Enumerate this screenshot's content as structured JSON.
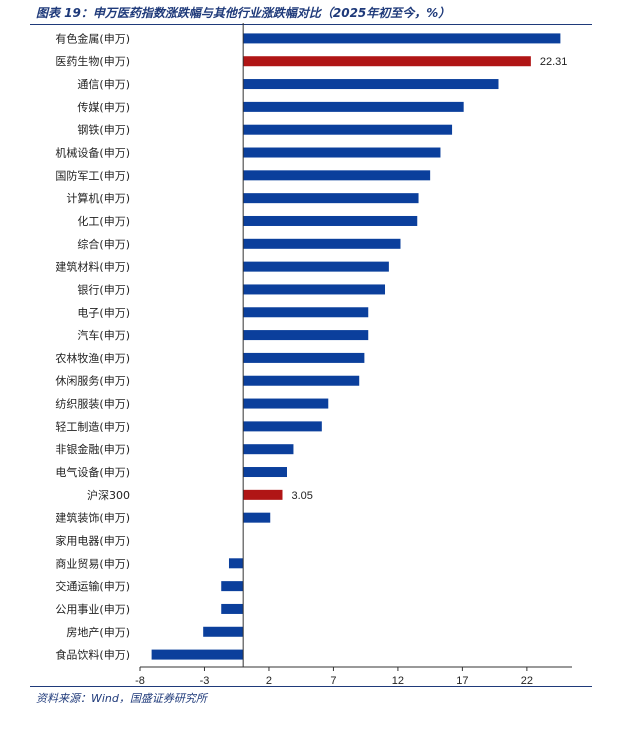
{
  "chart_data": {
    "type": "bar",
    "orientation": "horizontal",
    "title": "图表 19：申万医药指数涨跌幅与其他行业涨跌幅对比（2025年初至今，%）",
    "source": "资料来源：Wind，国盛证券研究所",
    "categories": [
      "有色金属(申万)",
      "医药生物(申万)",
      "通信(申万)",
      "传媒(申万)",
      "钢铁(申万)",
      "机械设备(申万)",
      "国防军工(申万)",
      "计算机(申万)",
      "化工(申万)",
      "综合(申万)",
      "建筑材料(申万)",
      "银行(申万)",
      "电子(申万)",
      "汽车(申万)",
      "农林牧渔(申万)",
      "休闲服务(申万)",
      "纺织服装(申万)",
      "轻工制造(申万)",
      "非银金融(申万)",
      "电气设备(申万)",
      "沪深300",
      "建筑装饰(申万)",
      "家用电器(申万)",
      "商业贸易(申万)",
      "交通运输(申万)",
      "公用事业(申万)",
      "房地产(申万)",
      "食品饮料(申万)"
    ],
    "values": [
      24.6,
      22.31,
      19.8,
      17.1,
      16.2,
      15.3,
      14.5,
      13.6,
      13.5,
      12.2,
      11.3,
      11.0,
      9.7,
      9.7,
      9.4,
      9.0,
      6.6,
      6.1,
      3.9,
      3.4,
      3.05,
      2.1,
      0.0,
      -1.1,
      -1.7,
      -1.7,
      -3.1,
      -7.1
    ],
    "highlight": [
      "医药生物(申万)",
      "沪深300"
    ],
    "data_labels": [
      {
        "category": "医药生物(申万)",
        "text": "22.31"
      },
      {
        "category": "沪深300",
        "text": "3.05"
      }
    ],
    "xticks": [
      -8,
      -3,
      2,
      7,
      12,
      17,
      22
    ],
    "xlim": [
      -8,
      25.5
    ],
    "xlabel": "",
    "ylabel": "",
    "grid": false,
    "colors": {
      "bar": "#0b3f9c",
      "highlight": "#b01515",
      "axis": "#333333",
      "title": "#1f3a7a"
    }
  }
}
